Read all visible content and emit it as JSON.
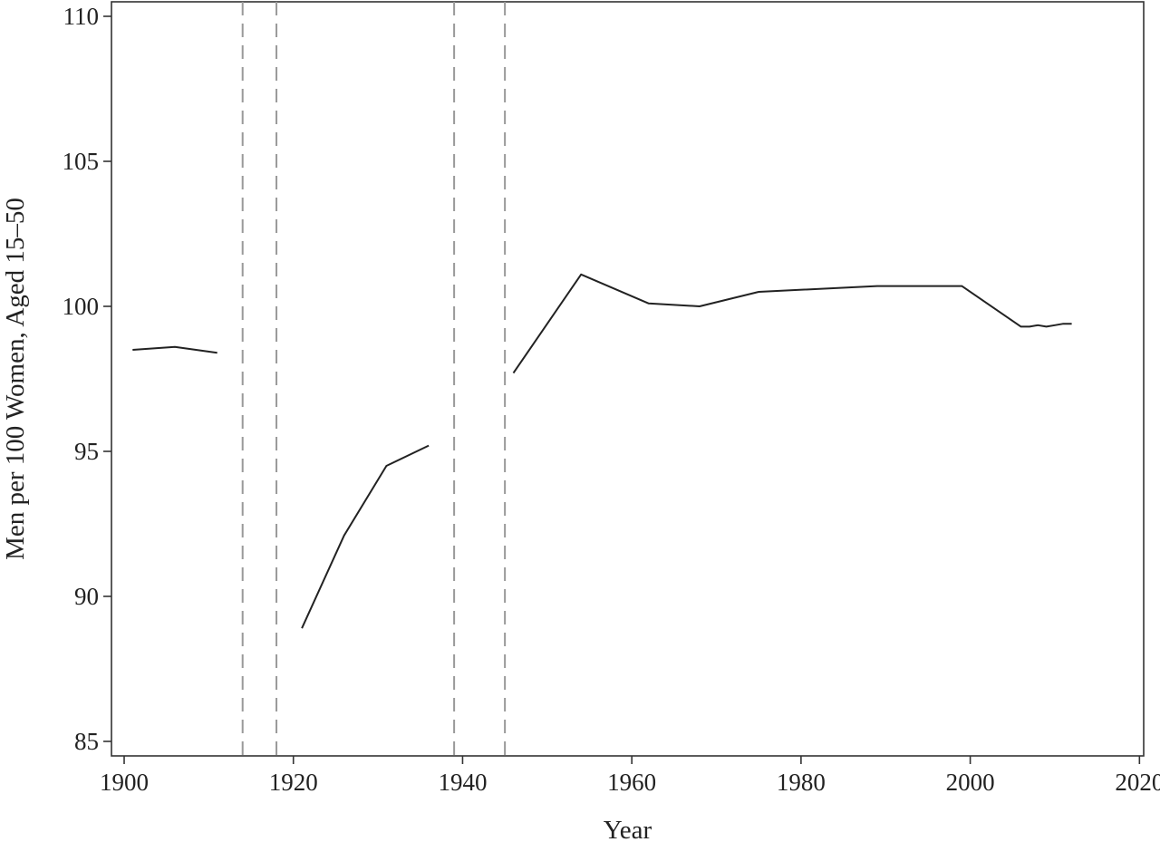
{
  "chart_data": {
    "type": "line",
    "title": "",
    "xlabel": "Year",
    "ylabel": "Men per 100 Women, Aged 15–50",
    "xlim": [
      1898.5,
      2020.5
    ],
    "ylim": [
      84.5,
      110.5
    ],
    "xticks": [
      1900,
      1920,
      1940,
      1960,
      1980,
      2000,
      2020
    ],
    "yticks": [
      85,
      90,
      95,
      100,
      105,
      110
    ],
    "grid": false,
    "legend": "none",
    "reference_lines_x": [
      1914,
      1918,
      1939,
      1945
    ],
    "series": [
      {
        "segments": [
          [
            [
              1901,
              98.5
            ],
            [
              1906,
              98.6
            ],
            [
              1911,
              98.4
            ]
          ],
          [
            [
              1921,
              88.9
            ],
            [
              1926,
              92.1
            ],
            [
              1931,
              94.5
            ],
            [
              1936,
              95.2
            ]
          ],
          [
            [
              1946,
              97.7
            ],
            [
              1954,
              101.1
            ],
            [
              1962,
              100.1
            ],
            [
              1968,
              100.0
            ],
            [
              1975,
              100.5
            ],
            [
              1989,
              100.7
            ],
            [
              1999,
              100.7
            ],
            [
              2006,
              99.3
            ],
            [
              2007,
              99.3
            ],
            [
              2008,
              99.35
            ],
            [
              2009,
              99.3
            ],
            [
              2010,
              99.35
            ],
            [
              2011,
              99.4
            ],
            [
              2012,
              99.4
            ]
          ]
        ]
      }
    ]
  }
}
